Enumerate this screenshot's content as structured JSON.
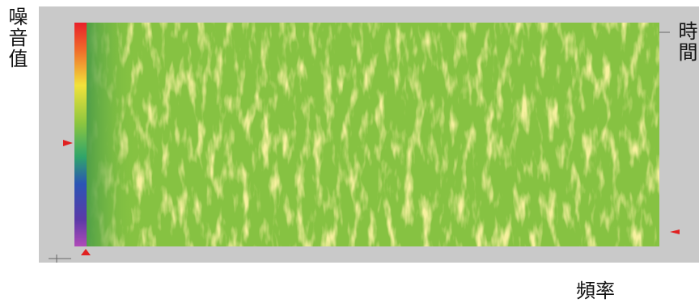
{
  "labels": {
    "y_axis": "噪音值",
    "right_axis": "時間",
    "x_axis": "頻率"
  }
}
